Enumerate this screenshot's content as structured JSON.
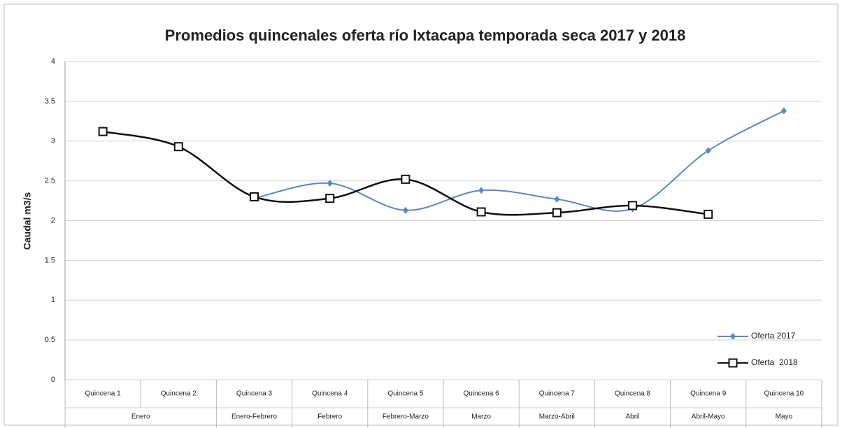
{
  "chart_data": {
    "type": "line",
    "title": "Promedios quincenales oferta río Ixtacapa temporada seca 2017 y 2018",
    "y_label": "Caudal m3/s",
    "categories": [
      "Quincena 1",
      "Quincena 2",
      "Quincena 3",
      "Quincena 4",
      "Quincena 5",
      "Quincena 6",
      "Quincena 7",
      "Quincena 8",
      "Quincena 9",
      "Quincena 10"
    ],
    "category_groups": [
      {
        "label": "Enero",
        "count": 2
      },
      {
        "label": "Enero-Febrero",
        "count": 1
      },
      {
        "label": "Febrero",
        "count": 1
      },
      {
        "label": "Febrero-Marzo",
        "count": 1
      },
      {
        "label": "Marzo",
        "count": 1
      },
      {
        "label": "Marzo-Abril",
        "count": 1
      },
      {
        "label": "Abril",
        "count": 1
      },
      {
        "label": "Abril-Mayo",
        "count": 1
      },
      {
        "label": "Mayo",
        "count": 1
      }
    ],
    "series": [
      {
        "name": "Oferta 2017",
        "color": "#5b87c5",
        "marker": "diamond",
        "values": [
          null,
          null,
          2.28,
          2.47,
          2.13,
          2.38,
          2.27,
          2.15,
          2.88,
          3.38
        ]
      },
      {
        "name": "Oferta  2018",
        "color": "#111111",
        "marker": "square",
        "values": [
          3.12,
          2.93,
          2.3,
          2.28,
          2.52,
          2.11,
          2.1,
          2.19,
          2.08,
          null
        ]
      }
    ],
    "ylim": [
      0,
      4
    ],
    "yticks": [
      0,
      0.5,
      1,
      1.5,
      2,
      2.5,
      3,
      3.5,
      4
    ],
    "grid": true,
    "smooth": true,
    "legend": "bottom-right"
  }
}
